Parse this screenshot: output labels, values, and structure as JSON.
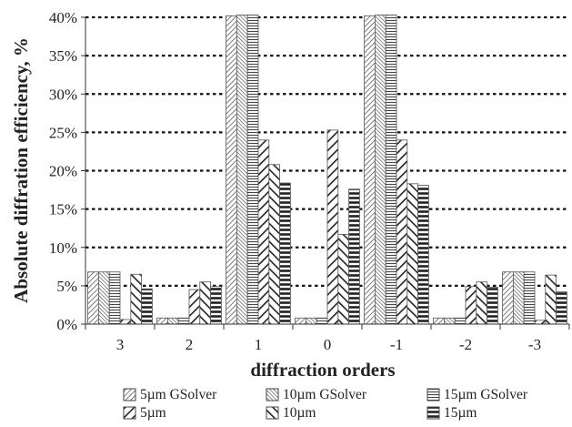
{
  "chart_data": {
    "type": "bar",
    "title": "",
    "xlabel": "diffraction orders",
    "ylabel": "Absolute diffration efficiency, %",
    "categories": [
      "3",
      "2",
      "1",
      "0",
      "-1",
      "-2",
      "-3"
    ],
    "ylim": [
      0,
      40
    ],
    "yticks": [
      0,
      5,
      10,
      15,
      20,
      25,
      30,
      35,
      40
    ],
    "ytick_labels": [
      "0%",
      "5%",
      "10%",
      "15%",
      "20%",
      "25%",
      "30%",
      "35%",
      "40%"
    ],
    "grid": "horizontal dashed",
    "legend_position": "bottom",
    "series": [
      {
        "name": "5µm GSolver",
        "pattern": "diag-fine",
        "values": [
          6.8,
          0.8,
          40.2,
          0.8,
          40.2,
          0.8,
          6.8
        ]
      },
      {
        "name": "10µm GSolver",
        "pattern": "diag-fine-dense",
        "values": [
          6.8,
          0.8,
          40.3,
          0.8,
          40.3,
          0.8,
          6.8
        ]
      },
      {
        "name": "15µm GSolver",
        "pattern": "horizontal-fine",
        "values": [
          6.8,
          0.8,
          40.3,
          0.8,
          40.3,
          0.8,
          6.8
        ]
      },
      {
        "name": "5µm",
        "pattern": "diag-wide",
        "values": [
          0.6,
          4.5,
          24.0,
          25.3,
          24.0,
          4.9,
          0.5
        ]
      },
      {
        "name": "10µm",
        "pattern": "diag-wide-back",
        "values": [
          6.5,
          5.5,
          20.8,
          11.7,
          18.3,
          5.5,
          6.4
        ]
      },
      {
        "name": "15µm",
        "pattern": "horizontal-wide",
        "values": [
          4.6,
          4.9,
          18.4,
          17.6,
          18.1,
          4.8,
          4.2
        ]
      }
    ]
  }
}
